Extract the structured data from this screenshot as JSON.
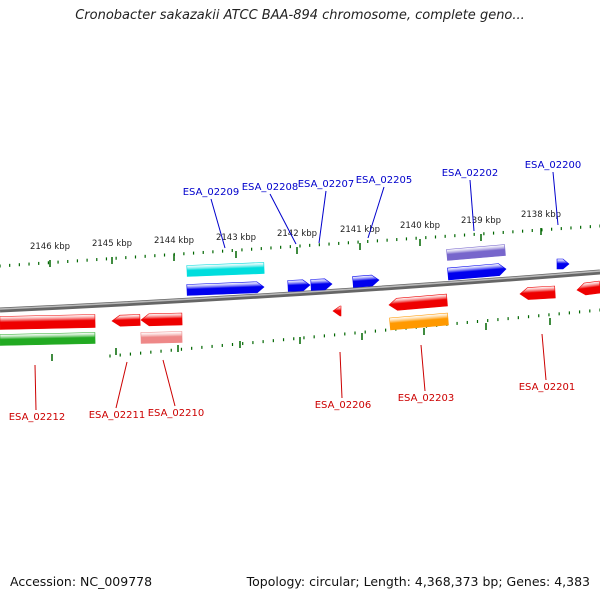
{
  "title": "Cronobacter sakazakii ATCC BAA-894 chromosome, complete geno...",
  "accession": "Accession: NC_009778",
  "summary": "Topology: circular; Length: 4,368,373 bp; Genes: 4,383",
  "colors": {
    "top_label": "#0000cc",
    "bottom_label": "#cc0000",
    "tick": "#006600",
    "backbone": "#888888",
    "red": "#ee0000",
    "blue": "#0000ee",
    "cyan": "#00dddd",
    "green": "#22aa22",
    "pink": "#ee8888",
    "orange": "#ff9900",
    "purple": "#7766cc"
  },
  "ruler_labels": [
    "2146 kbp",
    "2145 kbp",
    "2144 kbp",
    "2143 kbp",
    "2142 kbp",
    "2141 kbp",
    "2140 kbp",
    "2139 kbp",
    "2138 kbp"
  ],
  "top_genes": [
    "ESA_02209",
    "ESA_02208",
    "ESA_02207",
    "ESA_02205",
    "ESA_02202",
    "ESA_02200"
  ],
  "bottom_genes": [
    "ESA_02212",
    "ESA_02211",
    "ESA_02210",
    "ESA_02206",
    "ESA_02203",
    "ESA_02201"
  ]
}
